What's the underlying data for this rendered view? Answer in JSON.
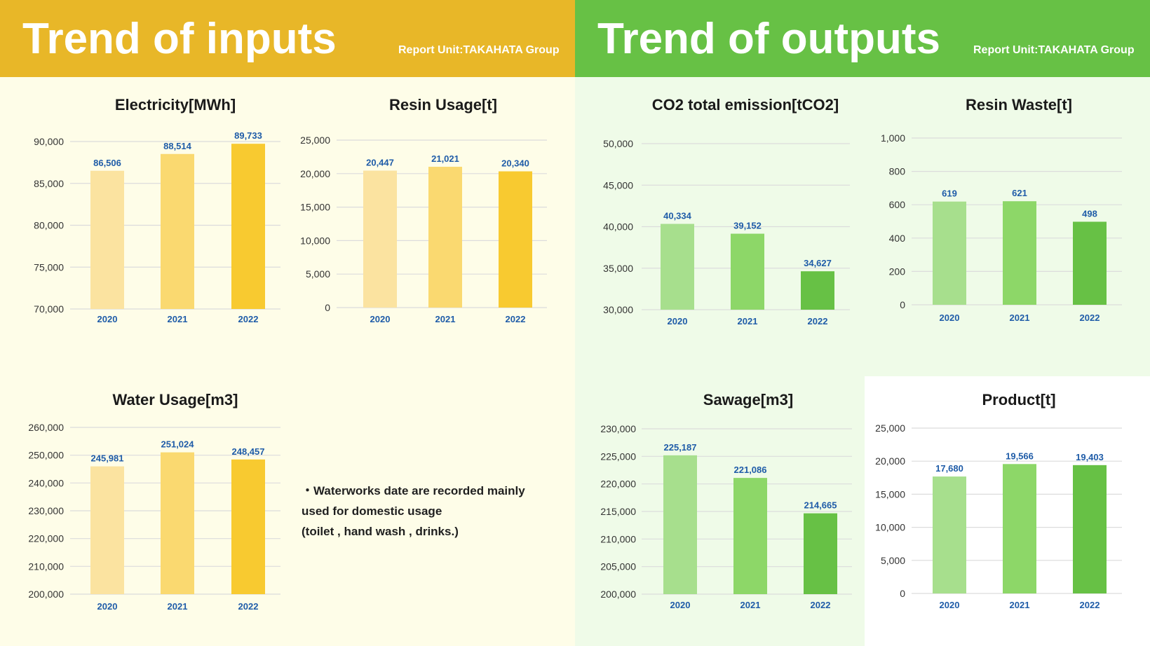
{
  "header_inputs": {
    "title": "Trend of inputs",
    "report_unit": "Report Unit:TAKAHATA Group",
    "color": "#e8b728"
  },
  "header_outputs": {
    "title": "Trend of outputs",
    "report_unit": "Report Unit:TAKAHATA Group",
    "color": "#67c145"
  },
  "note": {
    "line1": "・Waterworks date are recorded mainly",
    "line2": "used for domestic usage",
    "line3": " (toilet , hand wash , drinks.)"
  },
  "colors": {
    "inputs_bars": [
      "#fbe3a0",
      "#fad970",
      "#f8ca30"
    ],
    "outputs_bars": [
      "#a7df8d",
      "#8dd768",
      "#67c145"
    ],
    "label": "#1f5ca8"
  },
  "chart_data": [
    {
      "id": "electricity",
      "group": "inputs",
      "type": "bar",
      "title": "Electricity[MWh]",
      "categories": [
        "2020",
        "2021",
        "2022"
      ],
      "values": [
        86506,
        88514,
        89733
      ],
      "value_labels": [
        "86,506",
        "88,514",
        "89,733"
      ],
      "ylim": [
        70000,
        90000
      ],
      "yticks": [
        "70,000",
        "75,000",
        "80,000",
        "85,000",
        "90,000"
      ],
      "grid": true
    },
    {
      "id": "resin-usage",
      "group": "inputs",
      "type": "bar",
      "title": "Resin Usage[t]",
      "categories": [
        "2020",
        "2021",
        "2022"
      ],
      "values": [
        20447,
        21021,
        20340
      ],
      "value_labels": [
        "20,447",
        "21,021",
        "20,340"
      ],
      "ylim": [
        0,
        25000
      ],
      "yticks": [
        "0",
        "5,000",
        "10,000",
        "15,000",
        "20,000",
        "25,000"
      ],
      "grid": true
    },
    {
      "id": "co2-emission",
      "group": "outputs",
      "type": "bar",
      "title": "CO2 total emission[tCO2]",
      "categories": [
        "2020",
        "2021",
        "2022"
      ],
      "values": [
        40334,
        39152,
        34627
      ],
      "value_labels": [
        "40,334",
        "39,152",
        "34,627"
      ],
      "ylim": [
        30000,
        50000
      ],
      "yticks": [
        "30,000",
        "35,000",
        "40,000",
        "45,000",
        "50,000"
      ],
      "grid": true
    },
    {
      "id": "resin-waste",
      "group": "outputs",
      "type": "bar",
      "title": "Resin Waste[t]",
      "categories": [
        "2020",
        "2021",
        "2022"
      ],
      "values": [
        619,
        621,
        498
      ],
      "value_labels": [
        "619",
        "621",
        "498"
      ],
      "ylim": [
        0,
        1000
      ],
      "yticks": [
        "0",
        "200",
        "400",
        "600",
        "800",
        "1,000"
      ],
      "grid": true
    },
    {
      "id": "water-usage",
      "group": "inputs",
      "type": "bar",
      "title": "Water Usage[m3]",
      "categories": [
        "2020",
        "2021",
        "2022"
      ],
      "values": [
        245981,
        251024,
        248457
      ],
      "value_labels": [
        "245,981",
        "251,024",
        "248,457"
      ],
      "ylim": [
        200000,
        260000
      ],
      "yticks": [
        "200,000",
        "210,000",
        "220,000",
        "230,000",
        "240,000",
        "250,000",
        "260,000"
      ],
      "grid": true
    },
    {
      "id": "sewage",
      "group": "outputs",
      "type": "bar",
      "title": "Sawage[m3]",
      "categories": [
        "2020",
        "2021",
        "2022"
      ],
      "values": [
        225187,
        221086,
        214665
      ],
      "value_labels": [
        "225,187",
        "221,086",
        "214,665"
      ],
      "ylim": [
        200000,
        230000
      ],
      "yticks": [
        "200,000",
        "205,000",
        "210,000",
        "215,000",
        "220,000",
        "225,000",
        "230,000"
      ],
      "grid": true
    },
    {
      "id": "product",
      "group": "outputs",
      "type": "bar",
      "title": "Product[t]",
      "categories": [
        "2020",
        "2021",
        "2022"
      ],
      "values": [
        17680,
        19566,
        19403
      ],
      "value_labels": [
        "17,680",
        "19,566",
        "19,403"
      ],
      "ylim": [
        0,
        25000
      ],
      "yticks": [
        "0",
        "5,000",
        "10,000",
        "15,000",
        "20,000",
        "25,000"
      ],
      "grid": true
    }
  ]
}
